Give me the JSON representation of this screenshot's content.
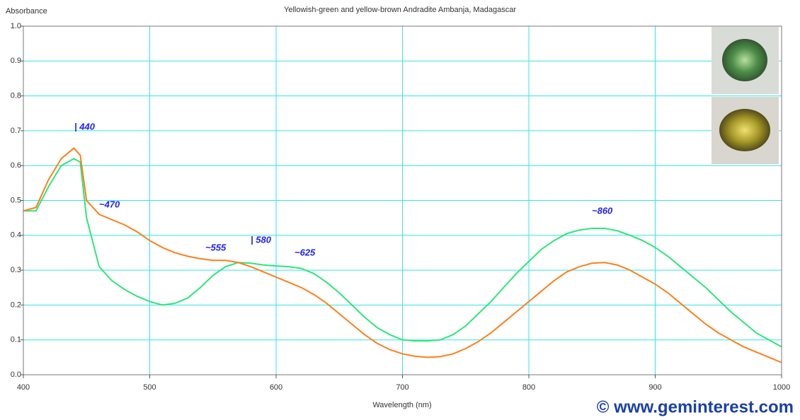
{
  "chart_data": {
    "type": "line",
    "title": "Yellowish-green and yellow-brown Andradite Ambanja, Madagascar",
    "y_label": "Absorbance",
    "x_label": "Wavelength (nm)",
    "annotations": [
      "| 440",
      "~470",
      "~555",
      "| 580",
      "~625",
      "~860"
    ],
    "watermark": "© www.geminterest.com",
    "grid": true,
    "xlim": [
      400,
      1000
    ],
    "xticks": [
      400,
      500,
      600,
      700,
      800,
      900,
      1000
    ],
    "ylim": [
      0,
      1
    ],
    "yticks": [
      {
        "value": 0,
        "label": "0.0"
      },
      0.1,
      0.2,
      0.3,
      0.4,
      0.5,
      0.6,
      0.7,
      0.8,
      0.9,
      {
        "value": 1,
        "label": "1.0"
      }
    ],
    "x": [
      400,
      410,
      420,
      430,
      440,
      445,
      450,
      460,
      470,
      480,
      490,
      500,
      510,
      520,
      530,
      540,
      550,
      560,
      570,
      580,
      590,
      600,
      610,
      620,
      630,
      640,
      650,
      660,
      670,
      680,
      690,
      700,
      710,
      720,
      730,
      740,
      750,
      760,
      770,
      780,
      790,
      800,
      810,
      820,
      830,
      840,
      850,
      860,
      870,
      880,
      890,
      900,
      910,
      920,
      930,
      940,
      950,
      960,
      970,
      980,
      990,
      1000
    ],
    "series": [
      {
        "color": "#2ee67a",
        "values": [
          0.47,
          0.47,
          0.54,
          0.6,
          0.62,
          0.61,
          0.45,
          0.31,
          0.27,
          0.245,
          0.225,
          0.21,
          0.2,
          0.205,
          0.22,
          0.25,
          0.285,
          0.31,
          0.322,
          0.32,
          0.315,
          0.312,
          0.31,
          0.305,
          0.29,
          0.265,
          0.235,
          0.2,
          0.165,
          0.135,
          0.115,
          0.1,
          0.097,
          0.097,
          0.1,
          0.115,
          0.14,
          0.175,
          0.21,
          0.25,
          0.29,
          0.325,
          0.36,
          0.385,
          0.405,
          0.415,
          0.42,
          0.42,
          0.413,
          0.4,
          0.385,
          0.365,
          0.34,
          0.31,
          0.28,
          0.25,
          0.215,
          0.18,
          0.15,
          0.12,
          0.1,
          0.08
        ]
      },
      {
        "color": "#ff7f1a",
        "values": [
          0.47,
          0.48,
          0.56,
          0.62,
          0.65,
          0.63,
          0.5,
          0.46,
          0.445,
          0.43,
          0.41,
          0.385,
          0.365,
          0.35,
          0.34,
          0.333,
          0.328,
          0.328,
          0.322,
          0.31,
          0.295,
          0.28,
          0.265,
          0.25,
          0.23,
          0.205,
          0.175,
          0.145,
          0.115,
          0.09,
          0.072,
          0.06,
          0.053,
          0.05,
          0.052,
          0.06,
          0.075,
          0.095,
          0.12,
          0.15,
          0.18,
          0.21,
          0.24,
          0.27,
          0.295,
          0.31,
          0.32,
          0.322,
          0.315,
          0.3,
          0.28,
          0.26,
          0.235,
          0.205,
          0.175,
          0.145,
          0.12,
          0.1,
          0.08,
          0.065,
          0.05,
          0.035
        ]
      }
    ]
  }
}
